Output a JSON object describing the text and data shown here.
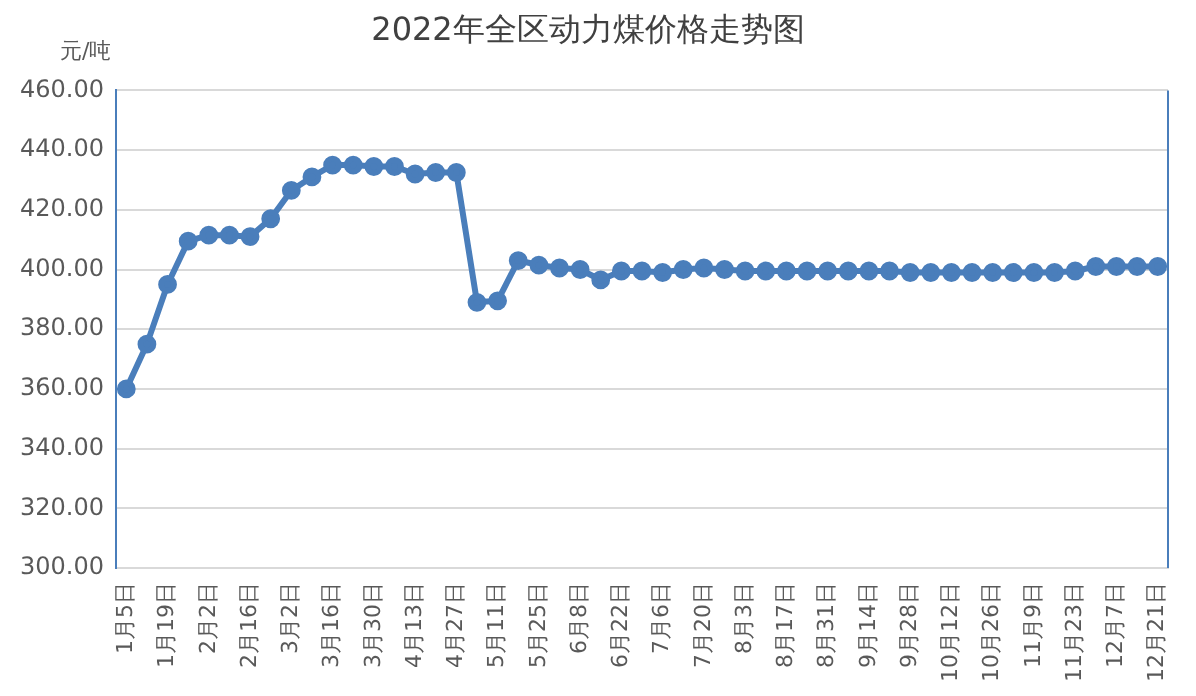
{
  "chart_data": {
    "type": "line",
    "title": "2022年全区动力煤价格走势图",
    "ylabel": "元/吨",
    "categories": [
      "1月5日",
      null,
      "1月19日",
      null,
      "2月2日",
      null,
      "2月16日",
      null,
      "3月2日",
      null,
      "3月16日",
      null,
      "3月30日",
      null,
      "4月13日",
      null,
      "4月27日",
      null,
      "5月11日",
      null,
      "5月25日",
      null,
      "6月8日",
      null,
      "6月22日",
      null,
      "7月6日",
      null,
      "7月20日",
      null,
      "8月3日",
      null,
      "8月17日",
      null,
      "8月31日",
      null,
      "9月14日",
      null,
      "9月28日",
      null,
      "10月12日",
      null,
      "10月26日",
      null,
      "11月9日",
      null,
      "11月23日",
      null,
      "12月7日",
      null,
      "12月21日"
    ],
    "series": [
      {
        "color": "#4a7ebb",
        "values": [
          360,
          375,
          395,
          409.5,
          411.5,
          411.5,
          411,
          417,
          426.5,
          431,
          435,
          435,
          434.5,
          434.5,
          432,
          432.5,
          432.5,
          389,
          389.5,
          403,
          401.5,
          400.5,
          400,
          396.5,
          399.5,
          399.5,
          399,
          400,
          400.5,
          400,
          399.5,
          399.5,
          399.5,
          399.5,
          399.5,
          399.5,
          399.5,
          399.5,
          399,
          399,
          399,
          399,
          399,
          399,
          399,
          399,
          399.5,
          401,
          401,
          401,
          401
        ]
      }
    ],
    "ylim": [
      300,
      460
    ],
    "yticks": [
      {
        "value": 300,
        "label": "300.00"
      },
      {
        "value": 320,
        "label": "320.00"
      },
      {
        "value": 340,
        "label": "340.00"
      },
      {
        "value": 360,
        "label": "360.00"
      },
      {
        "value": 380,
        "label": "380.00"
      },
      {
        "value": 400,
        "label": "400.00"
      },
      {
        "value": 420,
        "label": "420.00"
      },
      {
        "value": 440,
        "label": "440.00"
      },
      {
        "value": 460,
        "label": "460.00"
      }
    ],
    "grid": "y",
    "legend": false,
    "marker": "circle",
    "line_style": "solid"
  }
}
